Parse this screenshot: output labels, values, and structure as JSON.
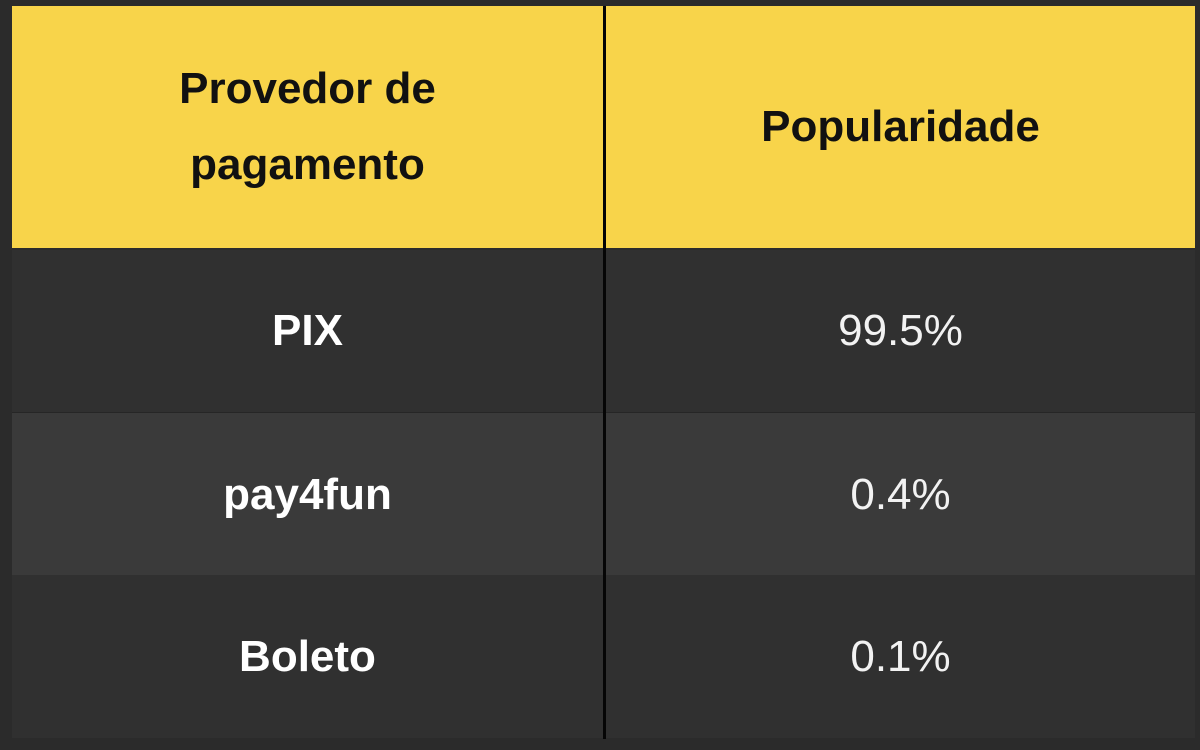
{
  "table": {
    "headers": [
      "Provedor de pagamento",
      "Popularidade"
    ],
    "rows": [
      {
        "provider": "PIX",
        "popularity": "99.5%"
      },
      {
        "provider": "pay4fun",
        "popularity": "0.4%"
      },
      {
        "provider": "Boleto",
        "popularity": "0.1%"
      }
    ]
  },
  "colors": {
    "header_bg": "#f8d44a",
    "row_bg": "#303030",
    "row_alt_bg": "#3a3a3a",
    "divider": "#050505"
  }
}
